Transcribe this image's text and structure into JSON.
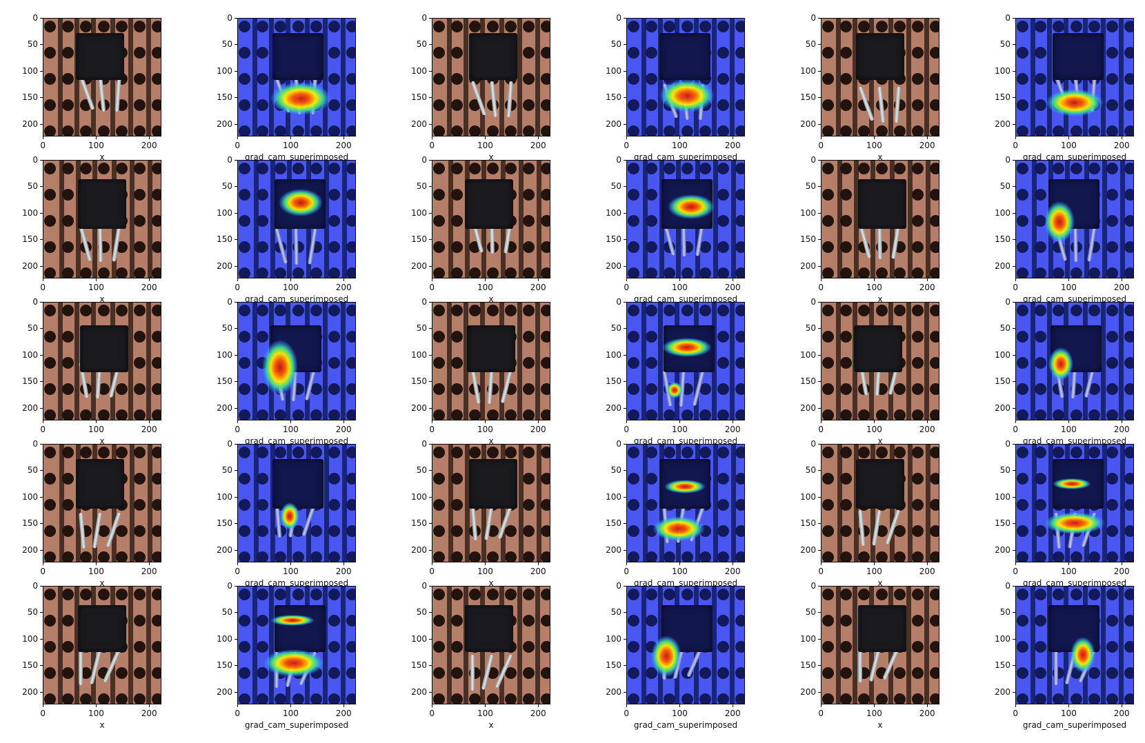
{
  "figure": {
    "x_ticks": [
      "0",
      "100",
      "200"
    ],
    "y_ticks": [
      "0",
      "50",
      "100",
      "150",
      "200"
    ],
    "column_titles": [
      "x",
      "grad_cam_superimposed",
      "x",
      "grad_cam_superimposed",
      "x",
      "grad_cam_superimposed"
    ],
    "rows": 5,
    "columns": 6,
    "image_colors": {
      "board": "#b57e69",
      "board_stripe": "#4a2f24",
      "hole": "#22130e",
      "transistor": "#1b1b1f",
      "overlay_base": "#4a56f2",
      "overlay_hot": "#c81818",
      "overlay_warm": "#ffee00",
      "overlay_cool": "#3fe08a"
    }
  }
}
